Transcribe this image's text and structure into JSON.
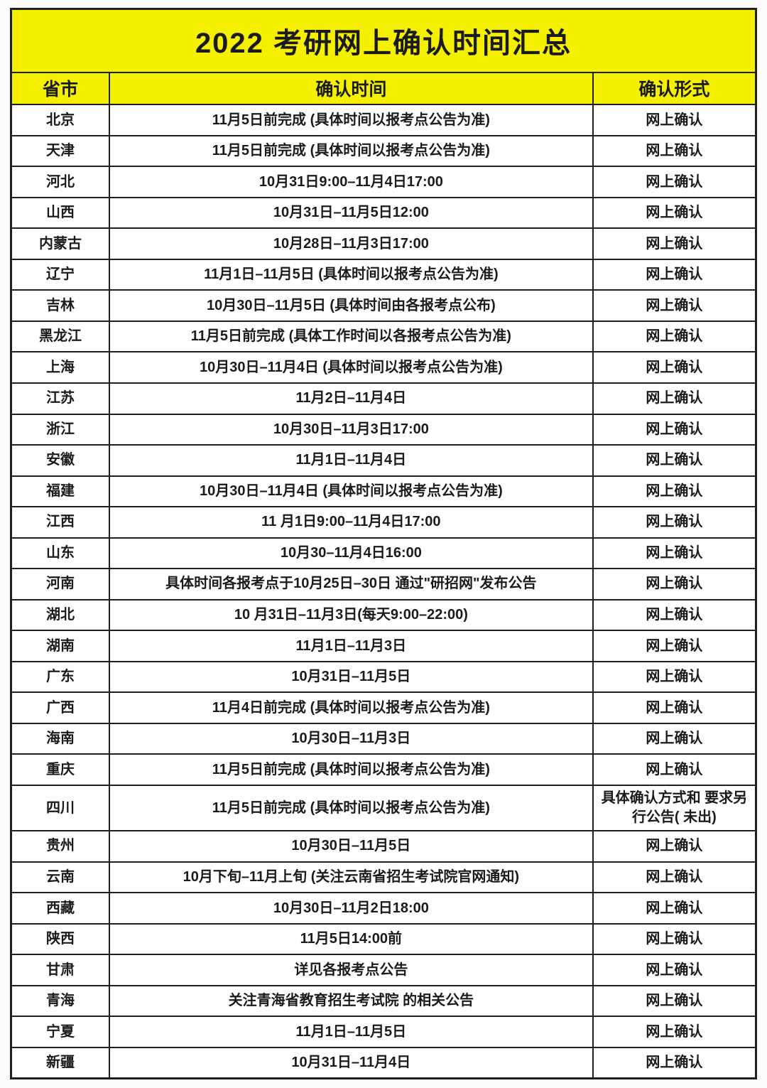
{
  "title": "2022 考研网上确认时间汇总",
  "colors": {
    "header_yellow": "#f4f000",
    "border": "#1f1f1f",
    "text": "#1b1b1b"
  },
  "table": {
    "headers": {
      "province": "省市",
      "time": "确认时间",
      "format": "确认形式"
    },
    "rows": [
      {
        "province": "北京",
        "time": "11月5日前完成 (具体时间以报考点公告为准)",
        "format": "网上确认"
      },
      {
        "province": "天津",
        "time": "11月5日前完成 (具体时间以报考点公告为准)",
        "format": "网上确认"
      },
      {
        "province": "河北",
        "time": "10月31日9:00–11月4日17:00",
        "format": "网上确认"
      },
      {
        "province": "山西",
        "time": "10月31日–11月5日12:00",
        "format": "网上确认"
      },
      {
        "province": "内蒙古",
        "time": "10月28日–11月3日17:00",
        "format": "网上确认"
      },
      {
        "province": "辽宁",
        "time": "11月1日–11月5日 (具体时间以报考点公告为准)",
        "format": "网上确认"
      },
      {
        "province": "吉林",
        "time": "10月30日–11月5日 (具体时间由各报考点公布)",
        "format": "网上确认"
      },
      {
        "province": "黑龙江",
        "time": "11月5日前完成 (具体工作时间以各报考点公告为准)",
        "format": "网上确认"
      },
      {
        "province": "上海",
        "time": "10月30日–11月4日 (具体时间以报考点公告为准)",
        "format": "网上确认"
      },
      {
        "province": "江苏",
        "time": "11月2日–11月4日",
        "format": "网上确认"
      },
      {
        "province": "浙江",
        "time": "10月30日–11月3日17:00",
        "format": "网上确认"
      },
      {
        "province": "安徽",
        "time": "11月1日–11月4日",
        "format": "网上确认"
      },
      {
        "province": "福建",
        "time": "10月30日–11月4日 (具体时间以报考点公告为准)",
        "format": "网上确认"
      },
      {
        "province": "江西",
        "time": "11 月1日9:00–11月4日17:00",
        "format": "网上确认"
      },
      {
        "province": "山东",
        "time": "10月30–11月4日16:00",
        "format": "网上确认"
      },
      {
        "province": "河南",
        "time": "具体时间各报考点于10月25日–30日 通过\"研招网\"发布公告",
        "format": "网上确认"
      },
      {
        "province": "湖北",
        "time": "10 月31日–11月3日(每天9:00–22:00)",
        "format": "网上确认"
      },
      {
        "province": "湖南",
        "time": "11月1日–11月3日",
        "format": "网上确认"
      },
      {
        "province": "广东",
        "time": "10月31日–11月5日",
        "format": "网上确认"
      },
      {
        "province": "广西",
        "time": "11月4日前完成 (具体时间以报考点公告为准)",
        "format": "网上确认"
      },
      {
        "province": "海南",
        "time": "10月30日–11月3日",
        "format": "网上确认"
      },
      {
        "province": "重庆",
        "time": "11月5日前完成 (具体时间以报考点公告为准)",
        "format": "网上确认"
      },
      {
        "province": "四川",
        "time": "11月5日前完成 (具体时间以报考点公告为准)",
        "format": "具体确认方式和 要求另行公告( 未出)"
      },
      {
        "province": "贵州",
        "time": "10月30日–11月5日",
        "format": "网上确认"
      },
      {
        "province": "云南",
        "time": "10月下旬–11月上旬 (关注云南省招生考试院官网通知)",
        "format": "网上确认"
      },
      {
        "province": "西藏",
        "time": "10月30日–11月2日18:00",
        "format": "网上确认"
      },
      {
        "province": "陕西",
        "time": "11月5日14:00前",
        "format": "网上确认"
      },
      {
        "province": "甘肃",
        "time": "详见各报考点公告",
        "format": "网上确认"
      },
      {
        "province": "青海",
        "time": "关注青海省教育招生考试院 的相关公告",
        "format": "网上确认"
      },
      {
        "province": "宁夏",
        "time": "11月1日–11月5日",
        "format": "网上确认"
      },
      {
        "province": "新疆",
        "time": "10月31日–11月4日",
        "format": "网上确认"
      }
    ]
  }
}
